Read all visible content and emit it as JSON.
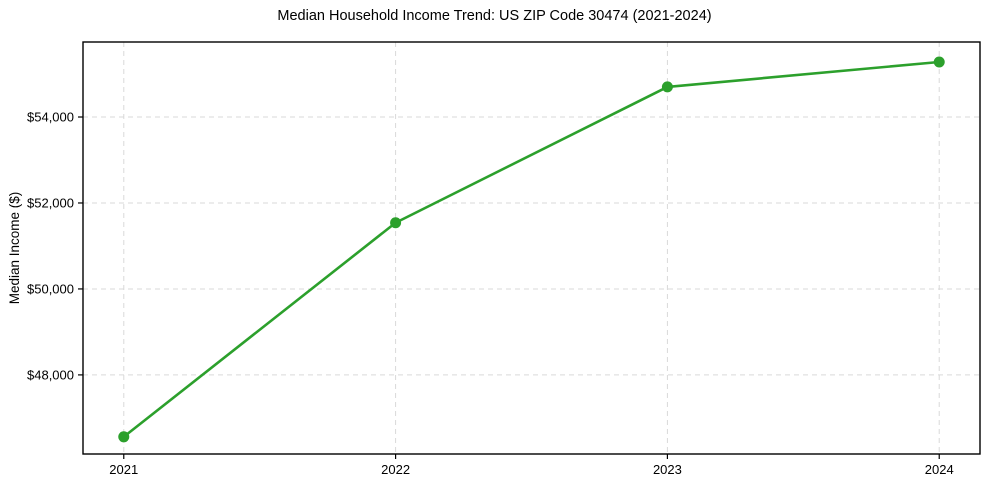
{
  "chart_data": {
    "type": "line",
    "title": "Median Household Income Trend: US ZIP Code 30474 (2021-2024)",
    "ylabel": "Median Income ($)",
    "xlabel": "",
    "x": [
      2021,
      2022,
      2023,
      2024
    ],
    "x_tick_labels": [
      "2021",
      "2022",
      "2023",
      "2024"
    ],
    "series": [
      {
        "name": "Median Household Income",
        "values": [
          46560,
          51540,
          54700,
          55280
        ]
      }
    ],
    "y_ticks": [
      48000,
      50000,
      52000,
      54000
    ],
    "y_tick_labels": [
      "$48,000",
      "$50,000",
      "$52,000",
      "$54,000"
    ],
    "xlim": [
      2020.85,
      2024.15
    ],
    "ylim": [
      46160,
      55745
    ],
    "grid": true,
    "grid_style": "dashed",
    "legend": "none",
    "colors": {
      "line": "#2ca02c",
      "marker": "#2ca02c",
      "grid": "#d9d9d9",
      "axis": "#000000",
      "text": "#000000",
      "background": "#ffffff"
    },
    "marker": "circle"
  }
}
